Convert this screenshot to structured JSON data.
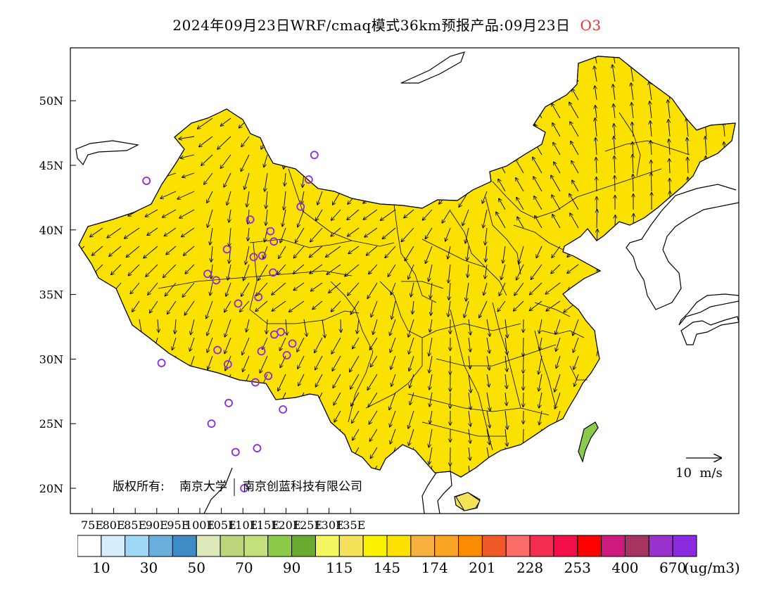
{
  "title": {
    "main": "2024年09月23日WRF/cmaq模式36km预报产品:09月23日",
    "species": "O3"
  },
  "axes": {
    "lon_ticks": [
      "75E",
      "80E",
      "85E",
      "90E",
      "95E",
      "100E",
      "105E",
      "110E",
      "115E",
      "120E",
      "125E",
      "130E",
      "135E"
    ],
    "lat_ticks": [
      "50N",
      "45N",
      "40N",
      "35N",
      "30N",
      "25N",
      "20N"
    ]
  },
  "watermark": {
    "prefix": "版权所有:",
    "org1": "南京大学",
    "org2": "南京创蓝科技有限公司"
  },
  "vector_scale": {
    "label": "10  m/s"
  },
  "colorbar": {
    "colors": [
      "#ffffff",
      "#d6eefb",
      "#9ed8f4",
      "#6aaedb",
      "#3f8cc4",
      "#dde8bb",
      "#bcd57a",
      "#c3e07d",
      "#8ccb49",
      "#6aab2f",
      "#f4f55f",
      "#f3e25a",
      "#fbf200",
      "#fbe100",
      "#f7b13e",
      "#f9a425",
      "#fb8b00",
      "#ef5a28",
      "#fc6c68",
      "#f32c52",
      "#f40e4a",
      "#fe0000",
      "#ce1a7f",
      "#a73360",
      "#9a32ce",
      "#8b2ae0"
    ],
    "labels": [
      "10",
      "30",
      "50",
      "70",
      "90",
      "115",
      "145",
      "174",
      "201",
      "228",
      "253",
      "400",
      "670"
    ],
    "unit": "(ug/m3)"
  },
  "stations": [
    {
      "lon": 87.6,
      "lat": 43.8
    },
    {
      "lon": 91.1,
      "lat": 29.7
    },
    {
      "lon": 101.8,
      "lat": 36.6
    },
    {
      "lon": 103.8,
      "lat": 36.1
    },
    {
      "lon": 106.3,
      "lat": 38.5
    },
    {
      "lon": 108.9,
      "lat": 34.3
    },
    {
      "lon": 104.1,
      "lat": 30.7
    },
    {
      "lon": 106.5,
      "lat": 29.6
    },
    {
      "lon": 102.7,
      "lat": 25.0
    },
    {
      "lon": 106.7,
      "lat": 26.6
    },
    {
      "lon": 108.3,
      "lat": 22.8
    },
    {
      "lon": 110.3,
      "lat": 20.0
    },
    {
      "lon": 113.3,
      "lat": 23.1
    },
    {
      "lon": 112.9,
      "lat": 28.2
    },
    {
      "lon": 114.3,
      "lat": 30.6
    },
    {
      "lon": 115.9,
      "lat": 28.7
    },
    {
      "lon": 117.3,
      "lat": 31.9
    },
    {
      "lon": 118.8,
      "lat": 32.1
    },
    {
      "lon": 120.2,
      "lat": 30.3
    },
    {
      "lon": 121.5,
      "lat": 31.2
    },
    {
      "lon": 119.3,
      "lat": 26.1
    },
    {
      "lon": 113.6,
      "lat": 34.8
    },
    {
      "lon": 117.0,
      "lat": 36.7
    },
    {
      "lon": 114.5,
      "lat": 38.0
    },
    {
      "lon": 112.5,
      "lat": 37.9
    },
    {
      "lon": 116.4,
      "lat": 39.9
    },
    {
      "lon": 117.2,
      "lat": 39.1
    },
    {
      "lon": 111.7,
      "lat": 40.8
    },
    {
      "lon": 123.4,
      "lat": 41.8
    },
    {
      "lon": 125.3,
      "lat": 43.9
    },
    {
      "lon": 126.6,
      "lat": 45.8
    }
  ]
}
